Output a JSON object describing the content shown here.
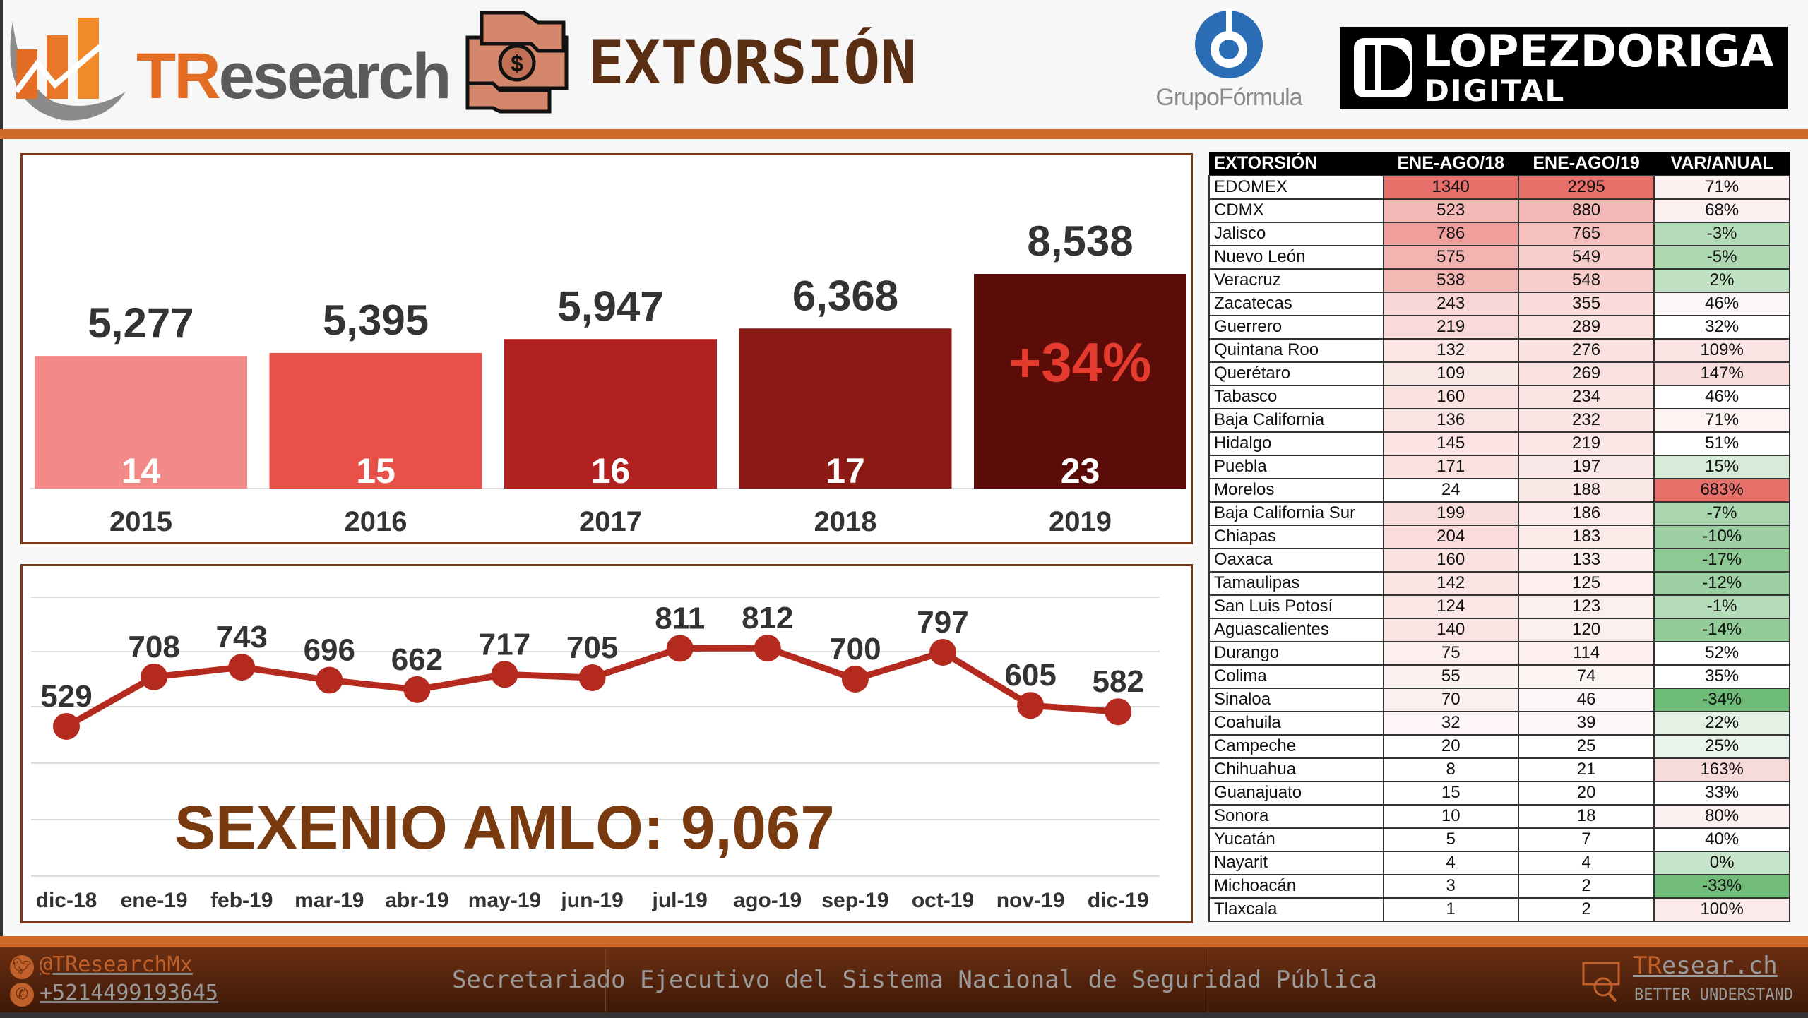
{
  "header": {
    "logo": "TResearch",
    "title": "EXTORSIÓN",
    "partner1": "GrupoFórmula",
    "partner2_line1": "LOPEZDORIGA",
    "partner2_line2": "DIGITAL"
  },
  "colors": {
    "accent": "#d06a2a",
    "title": "#5a2e12",
    "bar_colors": [
      "#f28b87",
      "#e8504a",
      "#b02020",
      "#8b1a14",
      "#5c0c08"
    ],
    "line": "#b52a1e",
    "annotation": "#e53a2e",
    "sexenio": "#7a3a10"
  },
  "chart_data": [
    {
      "type": "bar",
      "categories": [
        "2015",
        "2016",
        "2017",
        "2018",
        "2019"
      ],
      "values": [
        5277,
        5395,
        5947,
        6368,
        8538
      ],
      "value_labels": [
        "5,277",
        "5,395",
        "5,947",
        "6,368",
        "8,538"
      ],
      "inner_labels": [
        "14",
        "15",
        "16",
        "17",
        "23"
      ],
      "annotation": "+34%",
      "grid": false
    },
    {
      "type": "line",
      "categories": [
        "dic-18",
        "ene-19",
        "feb-19",
        "mar-19",
        "abr-19",
        "may-19",
        "jun-19",
        "jul-19",
        "ago-19",
        "sep-19",
        "oct-19",
        "nov-19",
        "dic-19"
      ],
      "values": [
        529,
        708,
        743,
        696,
        662,
        717,
        705,
        811,
        812,
        700,
        797,
        605,
        582
      ],
      "grid": true,
      "annotation": "SEXENIO AMLO: 9,067"
    }
  ],
  "table": {
    "headers": [
      "EXTORSIÓN",
      "ENE-AGO/18",
      "ENE-AGO/19",
      "VAR/ANUAL"
    ],
    "rows": [
      {
        "state": "EDOMEX",
        "y18": 1340,
        "y19": 2295,
        "var": "71%",
        "var_color": "#fcf0f0"
      },
      {
        "state": "CDMX",
        "y18": 523,
        "y19": 880,
        "var": "68%",
        "var_color": "#fcf0f0"
      },
      {
        "state": "Jalisco",
        "y18": 786,
        "y19": 765,
        "var": "-3%",
        "var_color": "#b5dcb9"
      },
      {
        "state": "Nuevo León",
        "y18": 575,
        "y19": 549,
        "var": "-5%",
        "var_color": "#add8b2"
      },
      {
        "state": "Veracruz",
        "y18": 538,
        "y19": 548,
        "var": "2%",
        "var_color": "#c0e2c3"
      },
      {
        "state": "Zacatecas",
        "y18": 243,
        "y19": 355,
        "var": "46%",
        "var_color": "#fdf9f9"
      },
      {
        "state": "Guerrero",
        "y18": 219,
        "y19": 289,
        "var": "32%",
        "var_color": "#ffffff"
      },
      {
        "state": "Quintana Roo",
        "y18": 132,
        "y19": 276,
        "var": "109%",
        "var_color": "#fae4e4"
      },
      {
        "state": "Querétaro",
        "y18": 109,
        "y19": 269,
        "var": "147%",
        "var_color": "#f9dede"
      },
      {
        "state": "Tabasco",
        "y18": 160,
        "y19": 234,
        "var": "46%",
        "var_color": "#ffffff"
      },
      {
        "state": "Baja California",
        "y18": 136,
        "y19": 232,
        "var": "71%",
        "var_color": "#fdf3f3"
      },
      {
        "state": "Hidalgo",
        "y18": 145,
        "y19": 219,
        "var": "51%",
        "var_color": "#ffffff"
      },
      {
        "state": "Puebla",
        "y18": 171,
        "y19": 197,
        "var": "15%",
        "var_color": "#d6ecd8"
      },
      {
        "state": "Morelos",
        "y18": 24,
        "y19": 188,
        "var": "683%",
        "var_color": "#e8706b"
      },
      {
        "state": "Baja California Sur",
        "y18": 199,
        "y19": 186,
        "var": "-7%",
        "var_color": "#a9d6ae"
      },
      {
        "state": "Chiapas",
        "y18": 204,
        "y19": 183,
        "var": "-10%",
        "var_color": "#9ccfa2"
      },
      {
        "state": "Oaxaca",
        "y18": 160,
        "y19": 133,
        "var": "-17%",
        "var_color": "#8cc993"
      },
      {
        "state": "Tamaulipas",
        "y18": 142,
        "y19": 125,
        "var": "-12%",
        "var_color": "#9dd0a3"
      },
      {
        "state": "San Luis Potosí",
        "y18": 124,
        "y19": 123,
        "var": "-1%",
        "var_color": "#b5dcb9"
      },
      {
        "state": "Aguascalientes",
        "y18": 140,
        "y19": 120,
        "var": "-14%",
        "var_color": "#93cc99"
      },
      {
        "state": "Durango",
        "y18": 75,
        "y19": 114,
        "var": "52%",
        "var_color": "#ffffff"
      },
      {
        "state": "Colima",
        "y18": 55,
        "y19": 74,
        "var": "35%",
        "var_color": "#ffffff"
      },
      {
        "state": "Sinaloa",
        "y18": 70,
        "y19": 46,
        "var": "-34%",
        "var_color": "#6fbb78"
      },
      {
        "state": "Coahuila",
        "y18": 32,
        "y19": 39,
        "var": "22%",
        "var_color": "#e4f1e5"
      },
      {
        "state": "Campeche",
        "y18": 20,
        "y19": 25,
        "var": "25%",
        "var_color": "#e8f3e9"
      },
      {
        "state": "Chihuahua",
        "y18": 8,
        "y19": 21,
        "var": "163%",
        "var_color": "#f7dbdb"
      },
      {
        "state": "Guanajuato",
        "y18": 15,
        "y19": 20,
        "var": "33%",
        "var_color": "#ffffff"
      },
      {
        "state": "Sonora",
        "y18": 10,
        "y19": 18,
        "var": "80%",
        "var_color": "#fcf0f0"
      },
      {
        "state": "Yucatán",
        "y18": 5,
        "y19": 7,
        "var": "40%",
        "var_color": "#ffffff"
      },
      {
        "state": "Nayarit",
        "y18": 4,
        "y19": 4,
        "var": "0%",
        "var_color": "#c6e4c9"
      },
      {
        "state": "Michoacán",
        "y18": 3,
        "y19": 2,
        "var": "-33%",
        "var_color": "#72bc7a"
      },
      {
        "state": "Tlaxcala",
        "y18": 1,
        "y19": 2,
        "var": "100%",
        "var_color": "#fbeaea"
      }
    ]
  },
  "footer": {
    "twitter": "@TResearchMx",
    "phone": "+5214499193645",
    "source": "Secretariado Ejecutivo del Sistema Nacional de Seguridad Pública",
    "brand_prefix": "TR",
    "brand_rest": "esear.ch",
    "tagline": "BETTER UNDERSTAND",
    "icons": [
      "twitter-icon",
      "whatsapp-icon",
      "web-search-icon"
    ]
  }
}
